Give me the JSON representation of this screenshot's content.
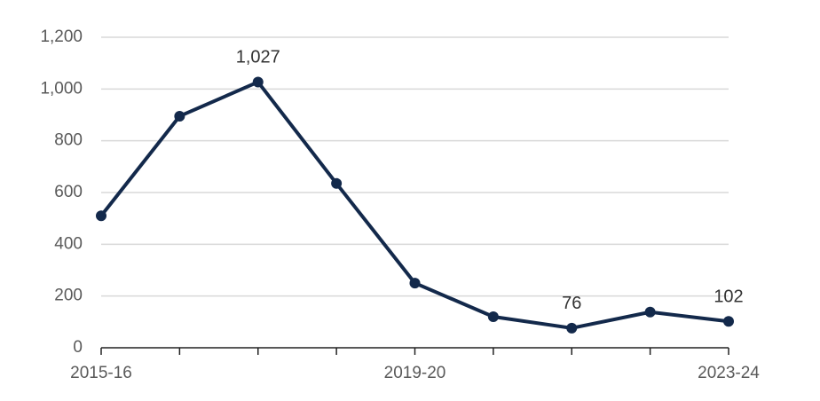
{
  "chart_data": {
    "type": "line",
    "categories": [
      "2015-16",
      null,
      null,
      null,
      "2019-20",
      null,
      null,
      null,
      "2023-24"
    ],
    "series": [
      {
        "color": "#13294b",
        "values": [
          510,
          895,
          1027,
          635,
          250,
          120,
          76,
          138,
          102
        ],
        "value_labels": [
          null,
          null,
          "1,027",
          null,
          null,
          null,
          "76",
          null,
          "102"
        ]
      }
    ],
    "ylim": [
      0,
      1200
    ],
    "yticks": [
      0,
      200,
      400,
      600,
      800,
      {
        "value": 1000,
        "label": "1,000"
      },
      {
        "value": 1200,
        "label": "1,200"
      }
    ],
    "grid": true
  }
}
